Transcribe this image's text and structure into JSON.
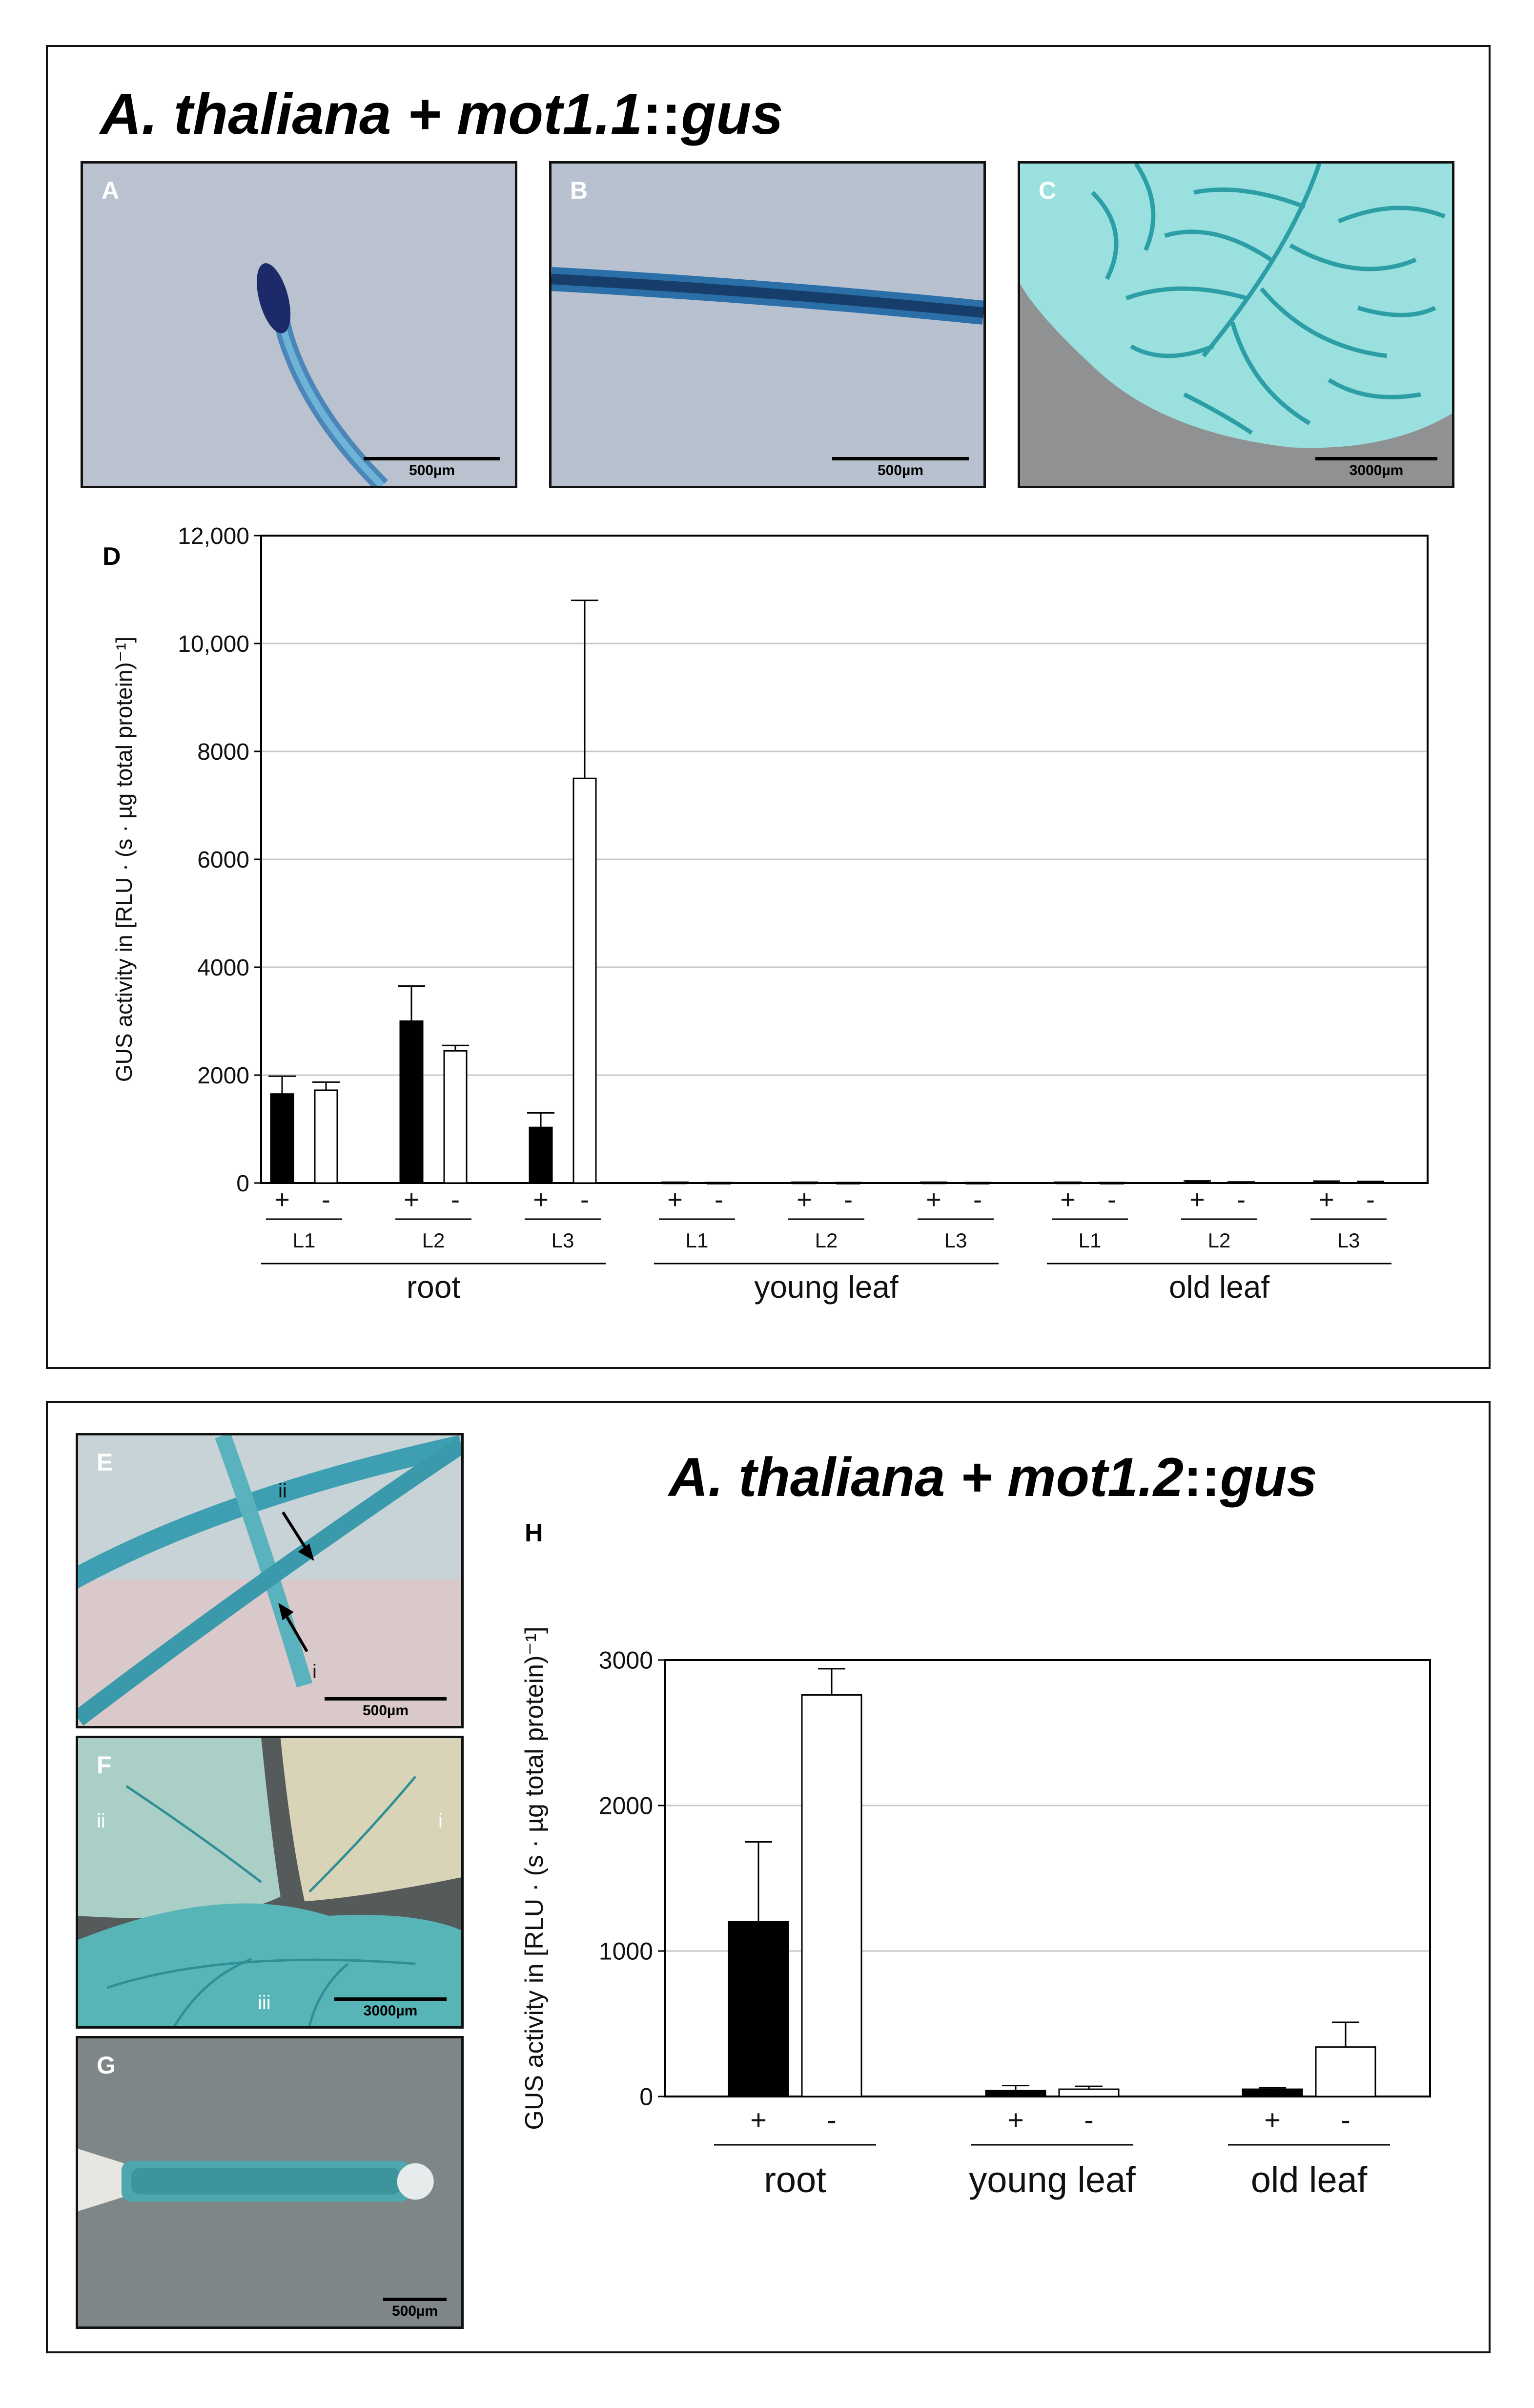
{
  "panel_top": {
    "title_italic": "A. thaliana + mot1.1",
    "title_sep": "::",
    "title_gene": "gus",
    "photos": [
      {
        "label": "A",
        "scale": "500µm"
      },
      {
        "label": "B",
        "scale": "500µm"
      },
      {
        "label": "C",
        "scale": "3000µm"
      }
    ],
    "chart_label": "D"
  },
  "panel_bottom": {
    "title_italic": "A. thaliana + mot1.2",
    "title_sep": "::",
    "title_gene": "gus",
    "photos": [
      {
        "label": "E",
        "scale": "500µm",
        "annotations": [
          "ii",
          "i"
        ]
      },
      {
        "label": "F",
        "scale": "3000µm",
        "annotations": [
          "ii",
          "i",
          "iii"
        ]
      },
      {
        "label": "G",
        "scale": "500µm"
      }
    ],
    "chart_label": "H"
  },
  "colors": {
    "plus_bar": "#000000",
    "minus_bar": "#ffffff",
    "grid": "#c8c8c8"
  },
  "chart_data": [
    {
      "type": "bar",
      "ylabel": "GUS activity in [RLU · (s · µg total protein)⁻¹]",
      "ylim": [
        0,
        12000
      ],
      "yticks": [
        0,
        2000,
        4000,
        6000,
        8000,
        10000,
        12000
      ],
      "ytick_labels": [
        "0",
        "2000",
        "4000",
        "6000",
        "8000",
        "10,000",
        "12,000"
      ],
      "grid": true,
      "groups": [
        "root",
        "young leaf",
        "old leaf"
      ],
      "lines": [
        "L1",
        "L2",
        "L3"
      ],
      "conditions": [
        "+",
        "-"
      ],
      "values": {
        "root": {
          "L1": [
            1650,
            1720
          ],
          "L2": [
            3000,
            2450
          ],
          "L3": [
            1030,
            7500
          ]
        },
        "young leaf": {
          "L1": [
            10,
            5
          ],
          "L2": [
            10,
            5
          ],
          "L3": [
            10,
            5
          ]
        },
        "old leaf": {
          "L1": [
            10,
            5
          ],
          "L2": [
            30,
            15
          ],
          "L3": [
            25,
            20
          ]
        }
      },
      "errors": {
        "root": {
          "L1": [
            330,
            150
          ],
          "L2": [
            650,
            100
          ],
          "L3": [
            270,
            3300
          ]
        },
        "young leaf": {
          "L1": [
            5,
            3
          ],
          "L2": [
            5,
            3
          ],
          "L3": [
            5,
            3
          ]
        },
        "old leaf": {
          "L1": [
            5,
            3
          ],
          "L2": [
            10,
            5
          ],
          "L3": [
            10,
            8
          ]
        }
      }
    },
    {
      "type": "bar",
      "ylabel": "GUS activity in [RLU · (s · µg total protein)⁻¹]",
      "ylim": [
        0,
        3000
      ],
      "yticks": [
        0,
        1000,
        2000,
        3000
      ],
      "ytick_labels": [
        "0",
        "1000",
        "2000",
        "3000"
      ],
      "grid": true,
      "groups": [
        "root",
        "young leaf",
        "old leaf"
      ],
      "conditions": [
        "+",
        "-"
      ],
      "values": {
        "root": [
          1200,
          2760
        ],
        "young leaf": [
          40,
          50
        ],
        "old leaf": [
          50,
          340
        ]
      },
      "errors": {
        "root": [
          550,
          180
        ],
        "young leaf": [
          35,
          20
        ],
        "old leaf": [
          10,
          170
        ]
      }
    }
  ]
}
